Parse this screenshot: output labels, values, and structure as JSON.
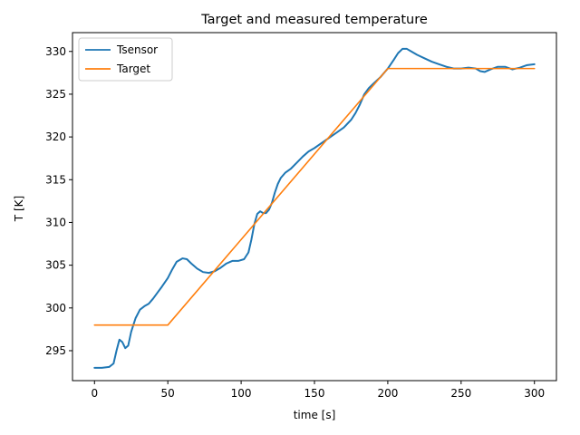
{
  "chart_data": {
    "type": "line",
    "title": "Target and measured temperature",
    "xlabel": "time [s]",
    "ylabel": "T [K]",
    "xlim": [
      -15,
      315
    ],
    "ylim": [
      291.5,
      332.2
    ],
    "xticks": [
      0,
      50,
      100,
      150,
      200,
      250,
      300
    ],
    "yticks": [
      295,
      300,
      305,
      310,
      315,
      320,
      325,
      330
    ],
    "grid": false,
    "legend_position": "upper-left",
    "series": [
      {
        "name": "Tsensor",
        "color": "#1f77b4",
        "x": [
          0,
          5,
          10,
          13,
          15,
          17,
          19,
          21,
          23,
          25,
          28,
          31,
          34,
          37,
          40,
          43,
          46,
          50,
          53,
          56,
          60,
          63,
          66,
          70,
          74,
          78,
          82,
          86,
          90,
          94,
          98,
          102,
          105,
          107,
          109,
          111,
          113,
          115,
          117,
          119,
          121,
          123,
          125,
          127,
          130,
          134,
          138,
          142,
          146,
          150,
          155,
          160,
          165,
          170,
          175,
          178,
          181,
          184,
          187,
          190,
          195,
          200,
          204,
          207,
          210,
          213,
          216,
          220,
          225,
          230,
          235,
          240,
          245,
          250,
          255,
          260,
          263,
          266,
          270,
          275,
          280,
          285,
          290,
          295,
          300
        ],
        "y": [
          293.0,
          293.0,
          293.1,
          293.5,
          295.0,
          296.3,
          296.0,
          295.3,
          295.6,
          297.2,
          298.8,
          299.8,
          300.2,
          300.5,
          301.1,
          301.8,
          302.5,
          303.5,
          304.5,
          305.4,
          305.8,
          305.7,
          305.2,
          304.6,
          304.2,
          304.1,
          304.3,
          304.7,
          305.2,
          305.5,
          305.5,
          305.7,
          306.5,
          308.0,
          309.8,
          311.0,
          311.3,
          311.1,
          311.1,
          311.5,
          312.3,
          313.5,
          314.5,
          315.2,
          315.8,
          316.3,
          317.0,
          317.7,
          318.3,
          318.7,
          319.3,
          319.9,
          320.5,
          321.1,
          322.0,
          322.8,
          323.8,
          325.0,
          325.7,
          326.2,
          327.0,
          328.0,
          329.0,
          329.8,
          330.3,
          330.3,
          330.0,
          329.6,
          329.2,
          328.8,
          328.5,
          328.2,
          328.0,
          328.0,
          328.1,
          328.0,
          327.7,
          327.6,
          327.9,
          328.2,
          328.2,
          327.9,
          328.1,
          328.4,
          328.5
        ]
      },
      {
        "name": "Target",
        "color": "#ff7f0e",
        "x": [
          0,
          50,
          200,
          300
        ],
        "y": [
          298,
          298,
          328,
          328
        ]
      }
    ]
  }
}
